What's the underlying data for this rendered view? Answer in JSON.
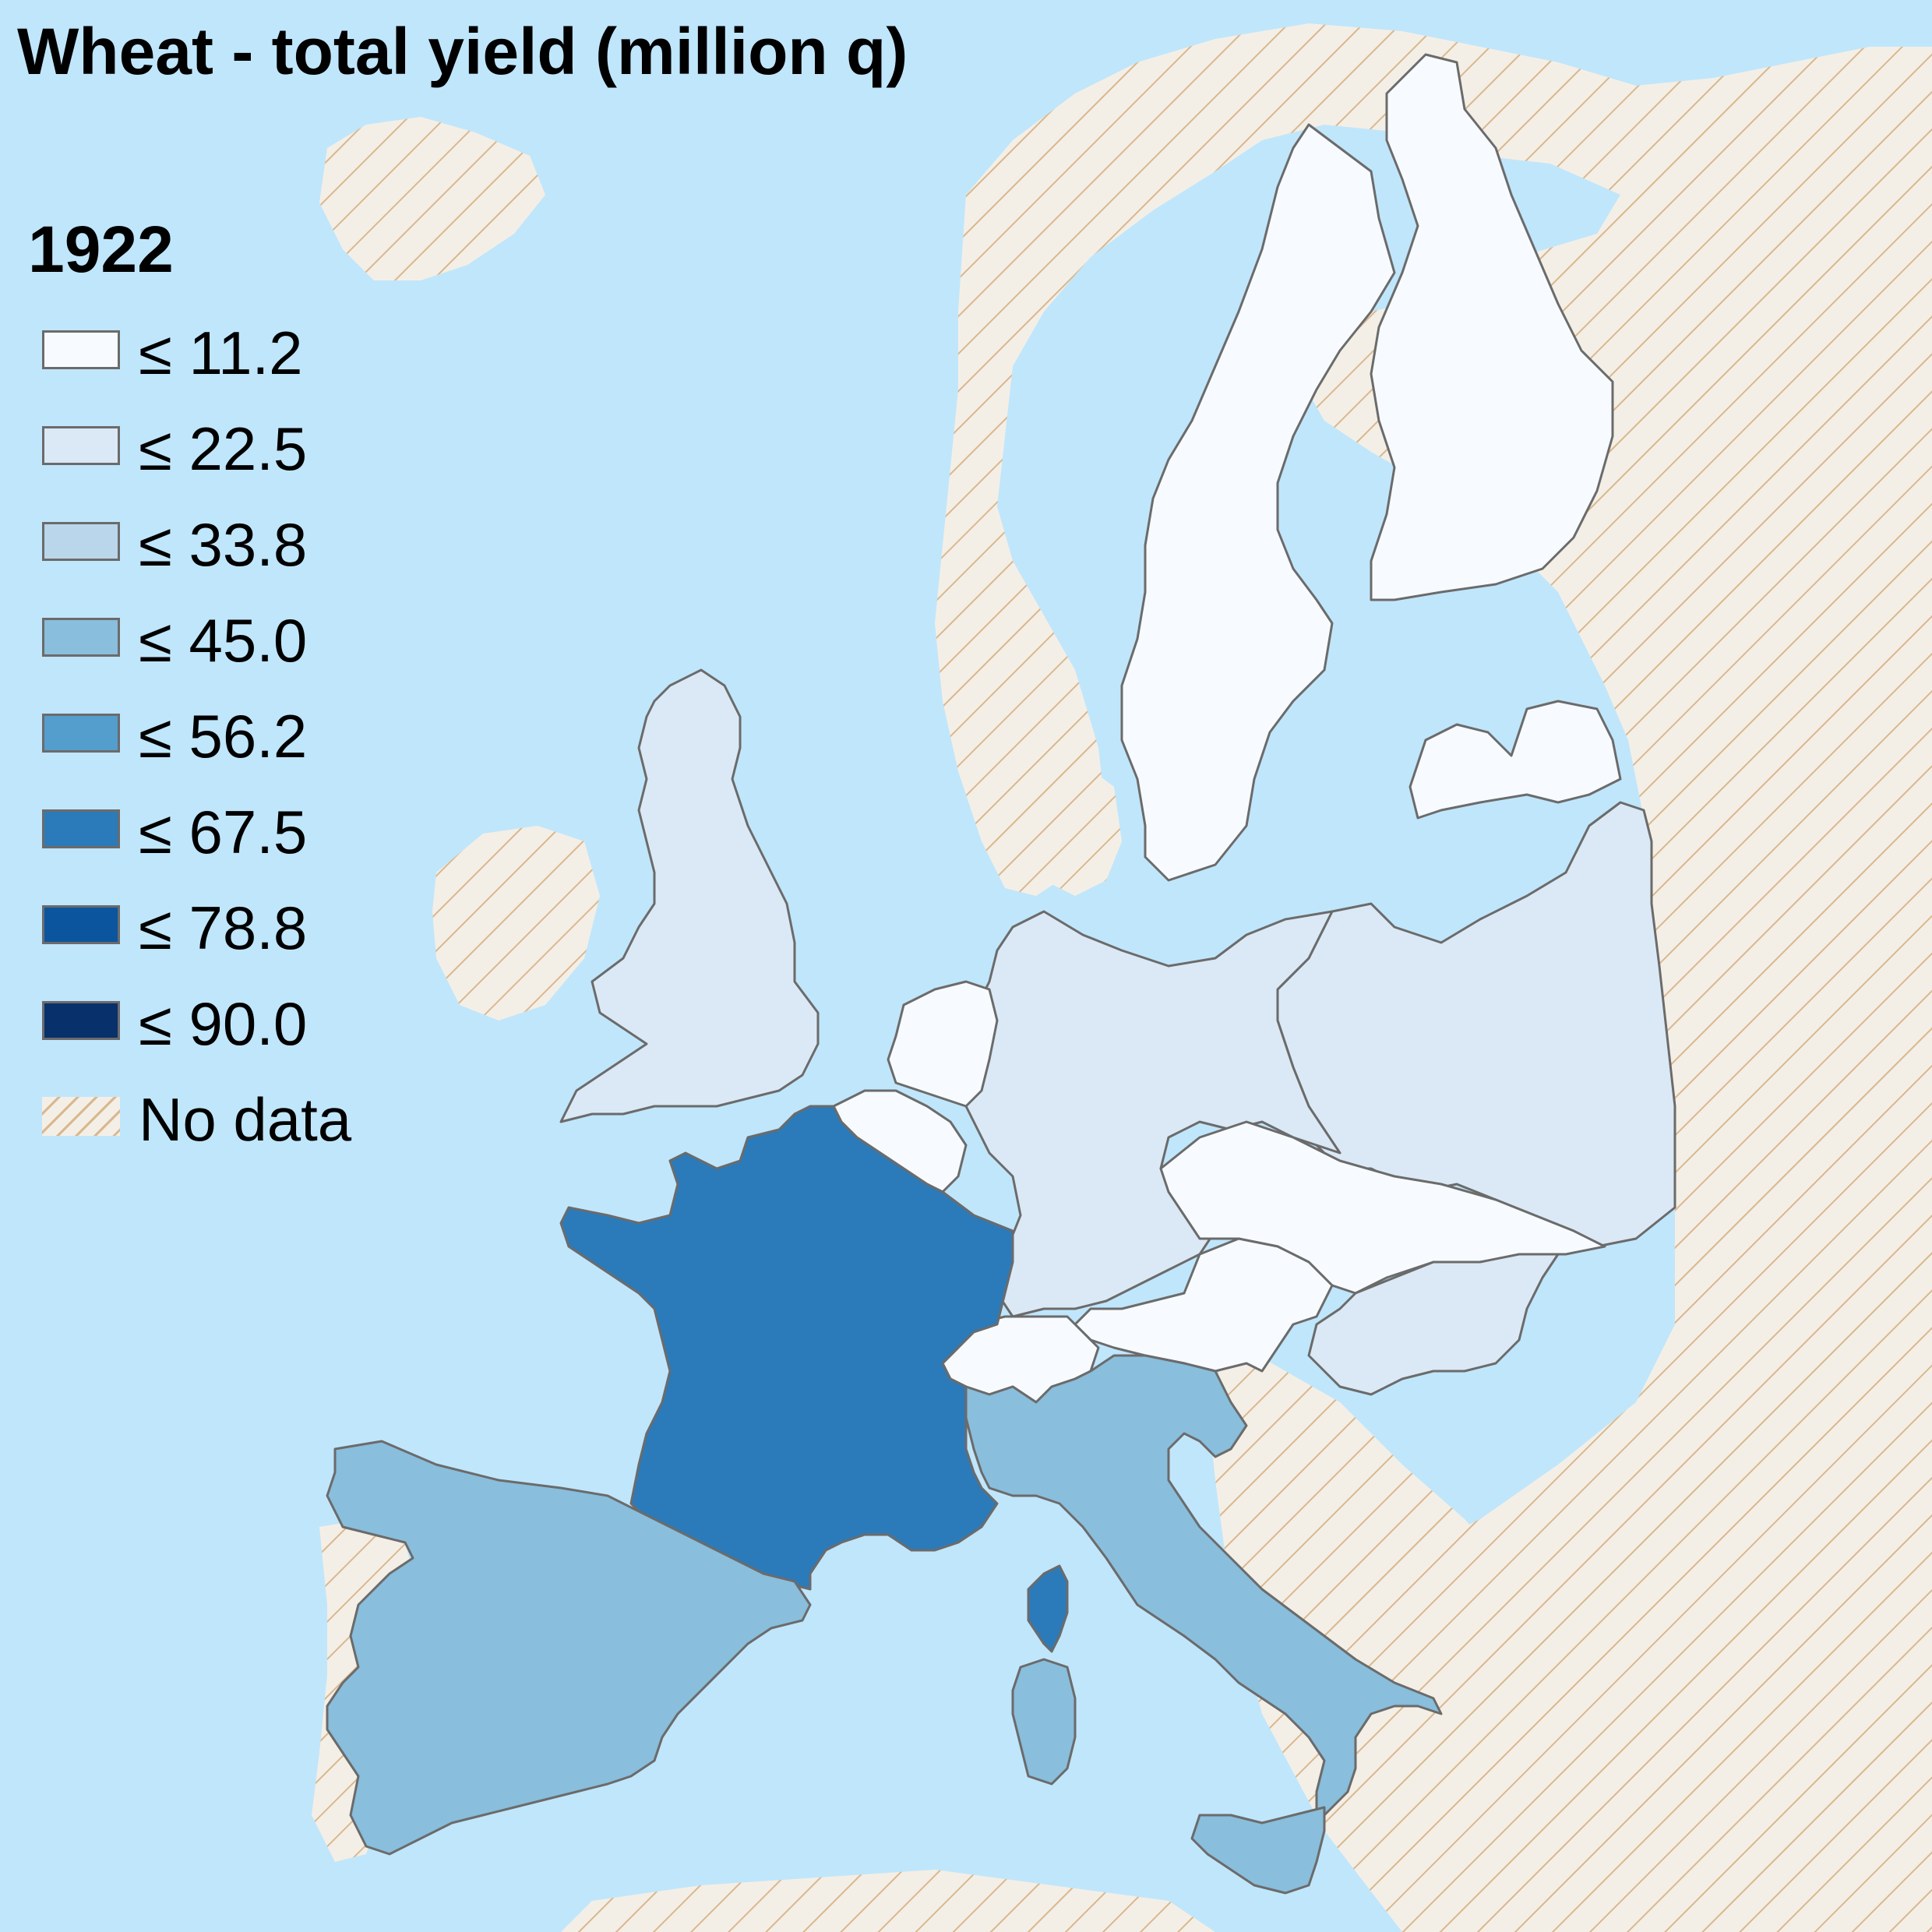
{
  "title": "Wheat - total yield (million q)",
  "year": "1922",
  "colors": {
    "sea": "#c0e6fb",
    "no_data_fill": "#f4efe6",
    "no_data_hatch": "#d9b88f",
    "border": "#6b6b6b"
  },
  "legend": [
    {
      "label": "≤ 11.2",
      "color": "#f7fbff"
    },
    {
      "label": "≤ 22.5",
      "color": "#dbe9f6"
    },
    {
      "label": "≤ 33.8",
      "color": "#bad6eb"
    },
    {
      "label": "≤ 45.0",
      "color": "#89bedc"
    },
    {
      "label": "≤ 56.2",
      "color": "#539ecd"
    },
    {
      "label": "≤ 67.5",
      "color": "#2b7bba"
    },
    {
      "label": "≤ 78.8",
      "color": "#0b559f"
    },
    {
      "label": "≤ 90.0",
      "color": "#08306b"
    },
    {
      "label": "No data",
      "color": "hatch"
    }
  ],
  "regions": [
    {
      "id": "france",
      "class": "≤ 67.5",
      "color": "#2b7bba"
    },
    {
      "id": "corsica",
      "class": "≤ 67.5",
      "color": "#2b7bba"
    },
    {
      "id": "spain",
      "class": "≤ 45.0",
      "color": "#89bedc"
    },
    {
      "id": "italy",
      "class": "≤ 45.0",
      "color": "#89bedc"
    },
    {
      "id": "sardinia",
      "class": "≤ 45.0",
      "color": "#89bedc"
    },
    {
      "id": "sicily",
      "class": "≤ 45.0",
      "color": "#89bedc"
    },
    {
      "id": "united-kingdom",
      "class": "≤ 22.5",
      "color": "#dbe9f6"
    },
    {
      "id": "germany",
      "class": "≤ 22.5",
      "color": "#dbe9f6"
    },
    {
      "id": "poland",
      "class": "≤ 22.5",
      "color": "#dbe9f6"
    },
    {
      "id": "hungary",
      "class": "≤ 22.5",
      "color": "#dbe9f6"
    },
    {
      "id": "sweden",
      "class": "≤ 11.2",
      "color": "#f7fbff"
    },
    {
      "id": "finland",
      "class": "≤ 11.2",
      "color": "#f7fbff"
    },
    {
      "id": "latvia",
      "class": "≤ 11.2",
      "color": "#f7fbff"
    },
    {
      "id": "netherlands",
      "class": "≤ 11.2",
      "color": "#f7fbff"
    },
    {
      "id": "belgium",
      "class": "≤ 11.2",
      "color": "#f7fbff"
    },
    {
      "id": "switzerland",
      "class": "≤ 11.2",
      "color": "#f7fbff"
    },
    {
      "id": "austria",
      "class": "≤ 11.2",
      "color": "#f7fbff"
    },
    {
      "id": "czechoslovakia",
      "class": "≤ 11.2",
      "color": "#f7fbff"
    }
  ]
}
